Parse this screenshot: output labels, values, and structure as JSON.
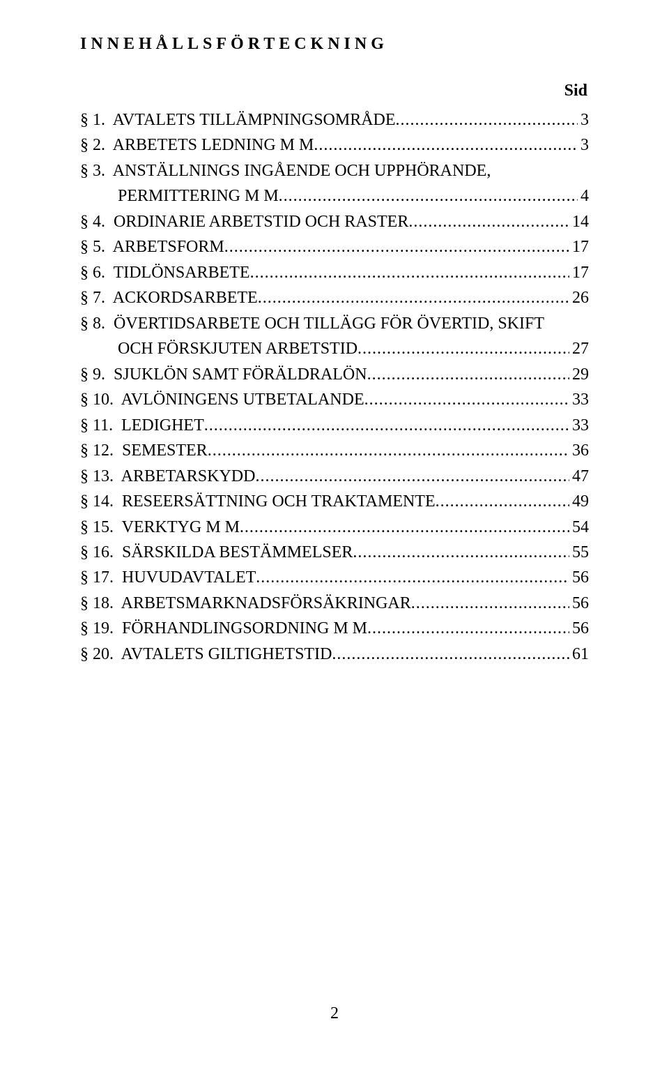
{
  "heading": "INNEHÅLLSFÖRTECKNING",
  "sid_label": "Sid",
  "page_number": "2",
  "toc": [
    {
      "section": "§ 1.",
      "title": "AVTALETS TILLÄMPNINGSOMRÅDE",
      "page": "3"
    },
    {
      "section": "§ 2.",
      "title": "ARBETETS LEDNING M M",
      "page": "3"
    },
    {
      "section": "§ 3.",
      "title": "ANSTÄLLNINGS INGÅENDE OCH UPPHÖRANDE,",
      "cont": "PERMITTERING M M",
      "page": "4"
    },
    {
      "section": "§ 4.",
      "title": "ORDINARIE ARBETSTID OCH RASTER",
      "page": "14"
    },
    {
      "section": "§ 5.",
      "title": "ARBETSFORM",
      "page": "17"
    },
    {
      "section": "§ 6.",
      "title": "TIDLÖNSARBETE",
      "page": "17"
    },
    {
      "section": "§ 7.",
      "title": "ACKORDSARBETE",
      "page": "26"
    },
    {
      "section": "§ 8.",
      "title": "ÖVERTIDSARBETE OCH TILLÄGG FÖR ÖVERTID, SKIFT",
      "cont": "OCH FÖRSKJUTEN ARBETSTID",
      "page": "27"
    },
    {
      "section": "§ 9.",
      "title": "SJUKLÖN SAMT FÖRÄLDRALÖN",
      "page": "29"
    },
    {
      "section": "§ 10.",
      "title": "AVLÖNINGENS UTBETALANDE",
      "page": "33"
    },
    {
      "section": "§ 11.",
      "title": "LEDIGHET",
      "page": "33"
    },
    {
      "section": "§ 12.",
      "title": "SEMESTER",
      "page": "36"
    },
    {
      "section": "§ 13.",
      "title": "ARBETARSKYDD",
      "page": "47"
    },
    {
      "section": "§ 14.",
      "title": "RESEERSÄTTNING OCH TRAKTAMENTE",
      "page": "49"
    },
    {
      "section": "§ 15.",
      "title": "VERKTYG M M",
      "page": "54"
    },
    {
      "section": "§ 16.",
      "title": "SÄRSKILDA BESTÄMMELSER",
      "page": "55"
    },
    {
      "section": "§ 17.",
      "title": "HUVUDAVTALET",
      "page": "56"
    },
    {
      "section": "§ 18.",
      "title": "ARBETSMARKNADSFÖRSÄKRINGAR",
      "page": "56"
    },
    {
      "section": "§ 19.",
      "title": "FÖRHANDLINGSORDNING M M",
      "page": "56"
    },
    {
      "section": "§ 20.",
      "title": "AVTALETS GILTIGHETSTID",
      "page": "61"
    }
  ]
}
